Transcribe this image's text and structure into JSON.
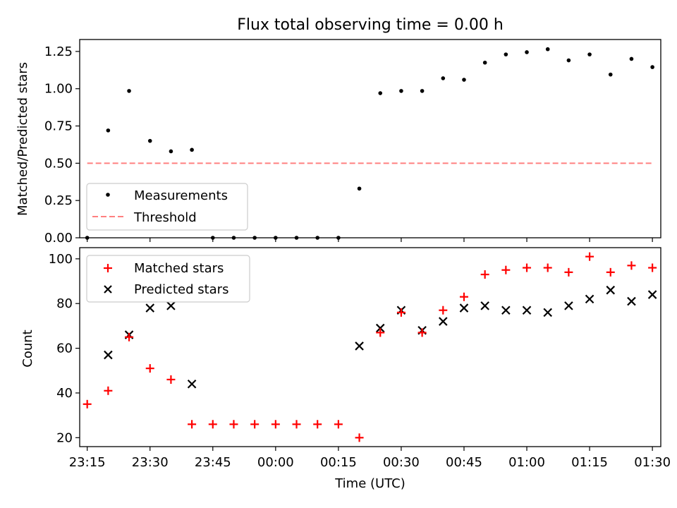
{
  "title": "Flux total observing time = 0.00 h",
  "colors": {
    "measurement": "#000000",
    "threshold": "#ff8080",
    "matched": "#ff0000",
    "predicted": "#000000",
    "axis": "#000000",
    "legend_border": "#cccccc"
  },
  "chart_data": [
    {
      "type": "scatter",
      "title": "Flux total observing time = 0.00 h",
      "xlabel": "",
      "ylabel": "Matched/Predicted stars",
      "xlim": [
        -1.8,
        137
      ],
      "ylim": [
        0,
        1.33
      ],
      "yticks": [
        "0.00",
        "0.25",
        "0.50",
        "0.75",
        "1.00",
        "1.25"
      ],
      "ytick_values": [
        0,
        0.25,
        0.5,
        0.75,
        1.0,
        1.25
      ],
      "x_tick_positions": [
        0,
        15,
        30,
        45,
        60,
        75,
        90,
        105,
        120,
        135
      ],
      "grid": false,
      "legend_position": "lower-left",
      "x_minutes": [
        0,
        5,
        10,
        15,
        20,
        25,
        30,
        35,
        40,
        45,
        50,
        55,
        60,
        65,
        70,
        75,
        80,
        85,
        90,
        95,
        100,
        105,
        110,
        115,
        120,
        125,
        130,
        135
      ],
      "series": [
        {
          "name": "Measurements",
          "values": [
            0,
            0.72,
            0.985,
            0.65,
            0.58,
            0.59,
            0,
            0,
            0,
            0,
            0,
            0,
            0,
            0.33,
            0.97,
            0.985,
            0.985,
            1.07,
            1.06,
            1.175,
            1.23,
            1.245,
            1.265,
            1.19,
            1.23,
            1.095,
            1.2,
            1.145
          ]
        },
        {
          "name": "Threshold",
          "values": [
            0.5,
            0.5
          ],
          "x_range": [
            0,
            135
          ]
        }
      ]
    },
    {
      "type": "scatter",
      "title": "",
      "xlabel": "Time (UTC)",
      "ylabel": "Count",
      "xlim": [
        -1.8,
        137
      ],
      "ylim": [
        16,
        105
      ],
      "yticks": [
        "20",
        "40",
        "60",
        "80",
        "100"
      ],
      "ytick_values": [
        20,
        40,
        60,
        80,
        100
      ],
      "xticks": [
        "23:15",
        "23:30",
        "23:45",
        "00:00",
        "00:15",
        "00:30",
        "00:45",
        "01:00",
        "01:15",
        "01:30"
      ],
      "x_tick_positions": [
        0,
        15,
        30,
        45,
        60,
        75,
        90,
        105,
        120,
        135
      ],
      "grid": false,
      "legend_position": "upper-left",
      "x_minutes": [
        0,
        5,
        10,
        15,
        20,
        25,
        30,
        35,
        40,
        45,
        50,
        55,
        60,
        65,
        70,
        75,
        80,
        85,
        90,
        95,
        100,
        105,
        110,
        115,
        120,
        125,
        130,
        135
      ],
      "series": [
        {
          "name": "Matched stars",
          "values": [
            35,
            41,
            65,
            51,
            46,
            26,
            26,
            26,
            26,
            26,
            26,
            26,
            26,
            20,
            67,
            76,
            67,
            77,
            83,
            93,
            95,
            96,
            96,
            94,
            101,
            94,
            97,
            96
          ]
        },
        {
          "name": "Predicted stars",
          "values": [
            null,
            57,
            66,
            78,
            79,
            44,
            null,
            null,
            null,
            null,
            null,
            null,
            null,
            61,
            69,
            77,
            68,
            72,
            78,
            79,
            77,
            77,
            76,
            79,
            82,
            86,
            81,
            84
          ]
        }
      ]
    }
  ]
}
